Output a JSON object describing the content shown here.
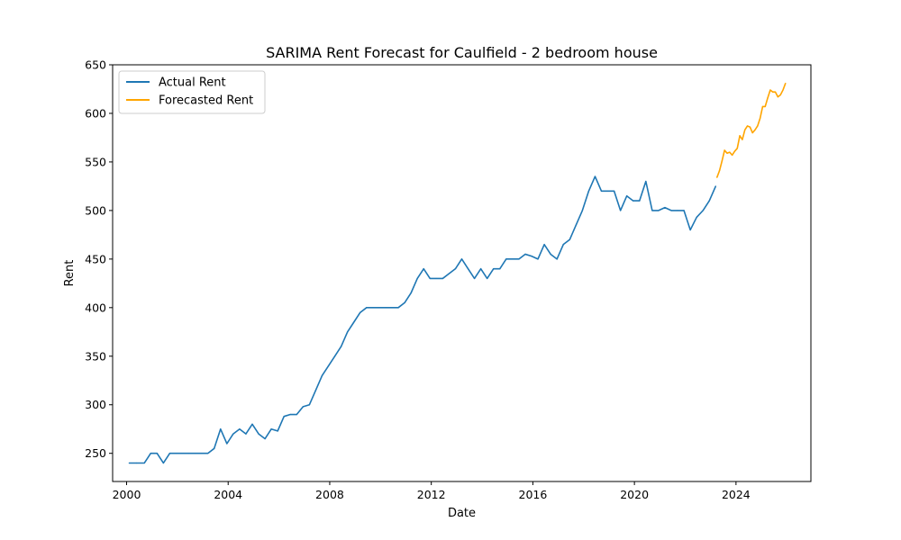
{
  "chart_data": {
    "type": "line",
    "title": "SARIMA Rent Forecast for Caulfield - 2 bedroom house",
    "xlabel": "Date",
    "ylabel": "Rent",
    "xlim": [
      1999.45,
      2026.95
    ],
    "ylim": [
      221,
      650
    ],
    "x_ticks": [
      2000,
      2004,
      2008,
      2012,
      2016,
      2020,
      2024
    ],
    "x_tick_labels": [
      "2000",
      "2004",
      "2008",
      "2012",
      "2016",
      "2020",
      "2024"
    ],
    "y_ticks": [
      250,
      300,
      350,
      400,
      450,
      500,
      550,
      600,
      650
    ],
    "y_tick_labels": [
      "250",
      "300",
      "350",
      "400",
      "450",
      "500",
      "550",
      "600",
      "650"
    ],
    "grid": false,
    "legend_position": "upper-left",
    "series": [
      {
        "name": "Actual Rent",
        "color": "#1f77b4",
        "points": [
          [
            2000.1,
            240
          ],
          [
            2000.4,
            240
          ],
          [
            2000.7,
            240
          ],
          [
            2000.95,
            250
          ],
          [
            2001.2,
            250
          ],
          [
            2001.45,
            240
          ],
          [
            2001.7,
            250
          ],
          [
            2001.95,
            250
          ],
          [
            2002.2,
            250
          ],
          [
            2002.45,
            250
          ],
          [
            2002.7,
            250
          ],
          [
            2002.95,
            250
          ],
          [
            2003.2,
            250
          ],
          [
            2003.45,
            255
          ],
          [
            2003.7,
            275
          ],
          [
            2003.95,
            260
          ],
          [
            2004.2,
            270
          ],
          [
            2004.45,
            275
          ],
          [
            2004.7,
            270
          ],
          [
            2004.95,
            280
          ],
          [
            2005.2,
            270
          ],
          [
            2005.45,
            265
          ],
          [
            2005.7,
            275
          ],
          [
            2005.95,
            273
          ],
          [
            2006.2,
            288
          ],
          [
            2006.45,
            290
          ],
          [
            2006.7,
            290
          ],
          [
            2006.95,
            298
          ],
          [
            2007.2,
            300
          ],
          [
            2007.45,
            315
          ],
          [
            2007.7,
            330
          ],
          [
            2007.95,
            340
          ],
          [
            2008.2,
            350
          ],
          [
            2008.45,
            360
          ],
          [
            2008.7,
            375
          ],
          [
            2008.95,
            385
          ],
          [
            2009.2,
            395
          ],
          [
            2009.45,
            400
          ],
          [
            2009.7,
            400
          ],
          [
            2009.95,
            400
          ],
          [
            2010.2,
            400
          ],
          [
            2010.45,
            400
          ],
          [
            2010.7,
            400
          ],
          [
            2010.95,
            405
          ],
          [
            2011.2,
            415
          ],
          [
            2011.45,
            430
          ],
          [
            2011.7,
            440
          ],
          [
            2011.95,
            430
          ],
          [
            2012.2,
            430
          ],
          [
            2012.45,
            430
          ],
          [
            2012.7,
            435
          ],
          [
            2012.95,
            440
          ],
          [
            2013.2,
            450
          ],
          [
            2013.45,
            440
          ],
          [
            2013.7,
            430
          ],
          [
            2013.95,
            440
          ],
          [
            2014.2,
            430
          ],
          [
            2014.45,
            440
          ],
          [
            2014.7,
            440
          ],
          [
            2014.95,
            450
          ],
          [
            2015.2,
            450
          ],
          [
            2015.45,
            450
          ],
          [
            2015.7,
            455
          ],
          [
            2015.95,
            453
          ],
          [
            2016.2,
            450
          ],
          [
            2016.45,
            465
          ],
          [
            2016.7,
            455
          ],
          [
            2016.95,
            450
          ],
          [
            2017.2,
            465
          ],
          [
            2017.45,
            470
          ],
          [
            2017.7,
            485
          ],
          [
            2017.95,
            500
          ],
          [
            2018.2,
            520
          ],
          [
            2018.45,
            535
          ],
          [
            2018.7,
            520
          ],
          [
            2018.95,
            520
          ],
          [
            2019.2,
            520
          ],
          [
            2019.45,
            500
          ],
          [
            2019.7,
            515
          ],
          [
            2019.95,
            510
          ],
          [
            2020.2,
            510
          ],
          [
            2020.45,
            530
          ],
          [
            2020.7,
            500
          ],
          [
            2020.95,
            500
          ],
          [
            2021.2,
            503
          ],
          [
            2021.45,
            500
          ],
          [
            2021.7,
            500
          ],
          [
            2021.95,
            500
          ],
          [
            2022.2,
            480
          ],
          [
            2022.45,
            493
          ],
          [
            2022.7,
            500
          ],
          [
            2022.95,
            510
          ],
          [
            2023.2,
            525
          ]
        ]
      },
      {
        "name": "Forecasted Rent",
        "color": "#ffa500",
        "points": [
          [
            2023.25,
            534
          ],
          [
            2023.35,
            541
          ],
          [
            2023.45,
            551
          ],
          [
            2023.55,
            562
          ],
          [
            2023.65,
            559
          ],
          [
            2023.75,
            560
          ],
          [
            2023.85,
            557
          ],
          [
            2023.95,
            561
          ],
          [
            2024.05,
            564
          ],
          [
            2024.15,
            577
          ],
          [
            2024.25,
            573
          ],
          [
            2024.35,
            583
          ],
          [
            2024.45,
            587
          ],
          [
            2024.55,
            586
          ],
          [
            2024.65,
            580
          ],
          [
            2024.75,
            583
          ],
          [
            2024.85,
            587
          ],
          [
            2024.95,
            595
          ],
          [
            2025.05,
            607
          ],
          [
            2025.15,
            607
          ],
          [
            2025.25,
            616
          ],
          [
            2025.35,
            624
          ],
          [
            2025.45,
            622
          ],
          [
            2025.55,
            622
          ],
          [
            2025.65,
            617
          ],
          [
            2025.75,
            619
          ],
          [
            2025.85,
            624
          ],
          [
            2025.95,
            631
          ]
        ]
      }
    ]
  }
}
